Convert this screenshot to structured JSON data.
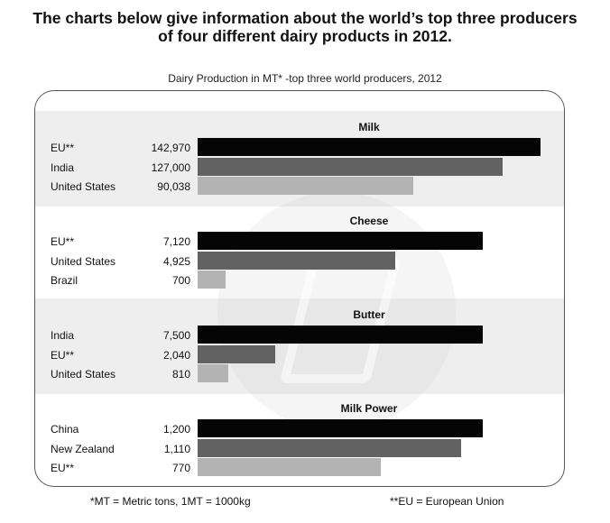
{
  "headline": {
    "line1": "The charts below give information about the world’s top three producers",
    "line2": "of four different dairy products in 2012."
  },
  "colors": {
    "rank1": "#050505",
    "rank2": "#626262",
    "rank3": "#b3b3b3",
    "band": "#eeeeee"
  },
  "chart_data": {
    "type": "bar",
    "title": "Dairy Production in MT* -top three world producers, 2012",
    "footnotes": [
      "*MT = Metric tons, 1MT = 1000kg",
      "**EU = European Union"
    ],
    "groups": [
      {
        "name": "Milk",
        "items": [
          {
            "label": "EU**",
            "value": 142970,
            "display": "142,970"
          },
          {
            "label": "India",
            "value": 127000,
            "display": "127,000"
          },
          {
            "label": "United States",
            "value": 90038,
            "display": "90,038"
          }
        ]
      },
      {
        "name": "Cheese",
        "items": [
          {
            "label": "EU**",
            "value": 7120,
            "display": "7,120"
          },
          {
            "label": "United States",
            "value": 4925,
            "display": "4,925"
          },
          {
            "label": "Brazil",
            "value": 700,
            "display": "700"
          }
        ]
      },
      {
        "name": "Butter",
        "items": [
          {
            "label": "India",
            "value": 7500,
            "display": "7,500"
          },
          {
            "label": "EU**",
            "value": 2040,
            "display": "2,040"
          },
          {
            "label": "United States",
            "value": 810,
            "display": "810"
          }
        ]
      },
      {
        "name": "Milk Power",
        "items": [
          {
            "label": "China",
            "value": 1200,
            "display": "1,200"
          },
          {
            "label": "New Zealand",
            "value": 1110,
            "display": "1,110"
          },
          {
            "label": "EU**",
            "value": 770,
            "display": "770"
          }
        ]
      }
    ]
  }
}
